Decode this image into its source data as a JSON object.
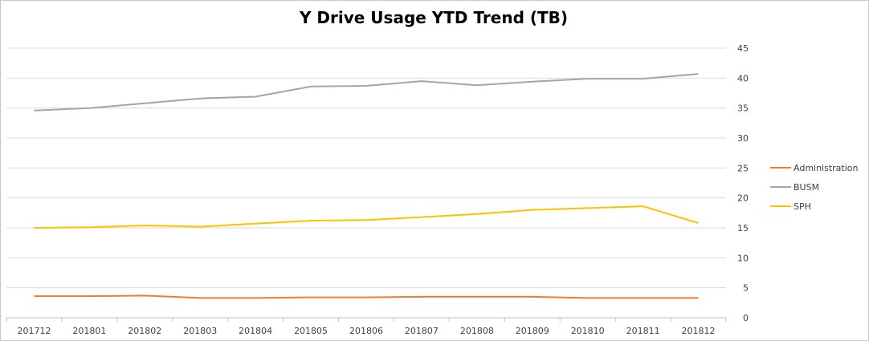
{
  "chart_data": {
    "type": "line",
    "title": "Y Drive Usage YTD Trend (TB)",
    "xlabel": "",
    "ylabel": "",
    "categories": [
      "201712",
      "201801",
      "201802",
      "201803",
      "201804",
      "201805",
      "201806",
      "201807",
      "201808",
      "201809",
      "201810",
      "201811",
      "201812"
    ],
    "ylim": [
      0,
      45
    ],
    "yticks": [
      "45",
      "40",
      "35",
      "30",
      "25",
      "20",
      "15",
      "10",
      "5",
      "0"
    ],
    "grid": true,
    "legend_position": "right",
    "series": [
      {
        "name": "Administration",
        "color": "#ED7D31",
        "values": [
          3.6,
          3.6,
          3.7,
          3.3,
          3.3,
          3.4,
          3.4,
          3.5,
          3.5,
          3.5,
          3.3,
          3.3,
          3.3
        ]
      },
      {
        "name": "BUSM",
        "color": "#A5A5A5",
        "values": [
          34.6,
          35.0,
          35.8,
          36.6,
          36.9,
          38.6,
          38.7,
          39.5,
          38.8,
          39.4,
          39.9,
          39.9,
          40.7
        ]
      },
      {
        "name": "SPH",
        "color": "#FFC000",
        "values": [
          15.0,
          15.1,
          15.4,
          15.2,
          15.7,
          16.2,
          16.3,
          16.8,
          17.3,
          18.0,
          18.3,
          18.6,
          15.8
        ]
      }
    ]
  }
}
